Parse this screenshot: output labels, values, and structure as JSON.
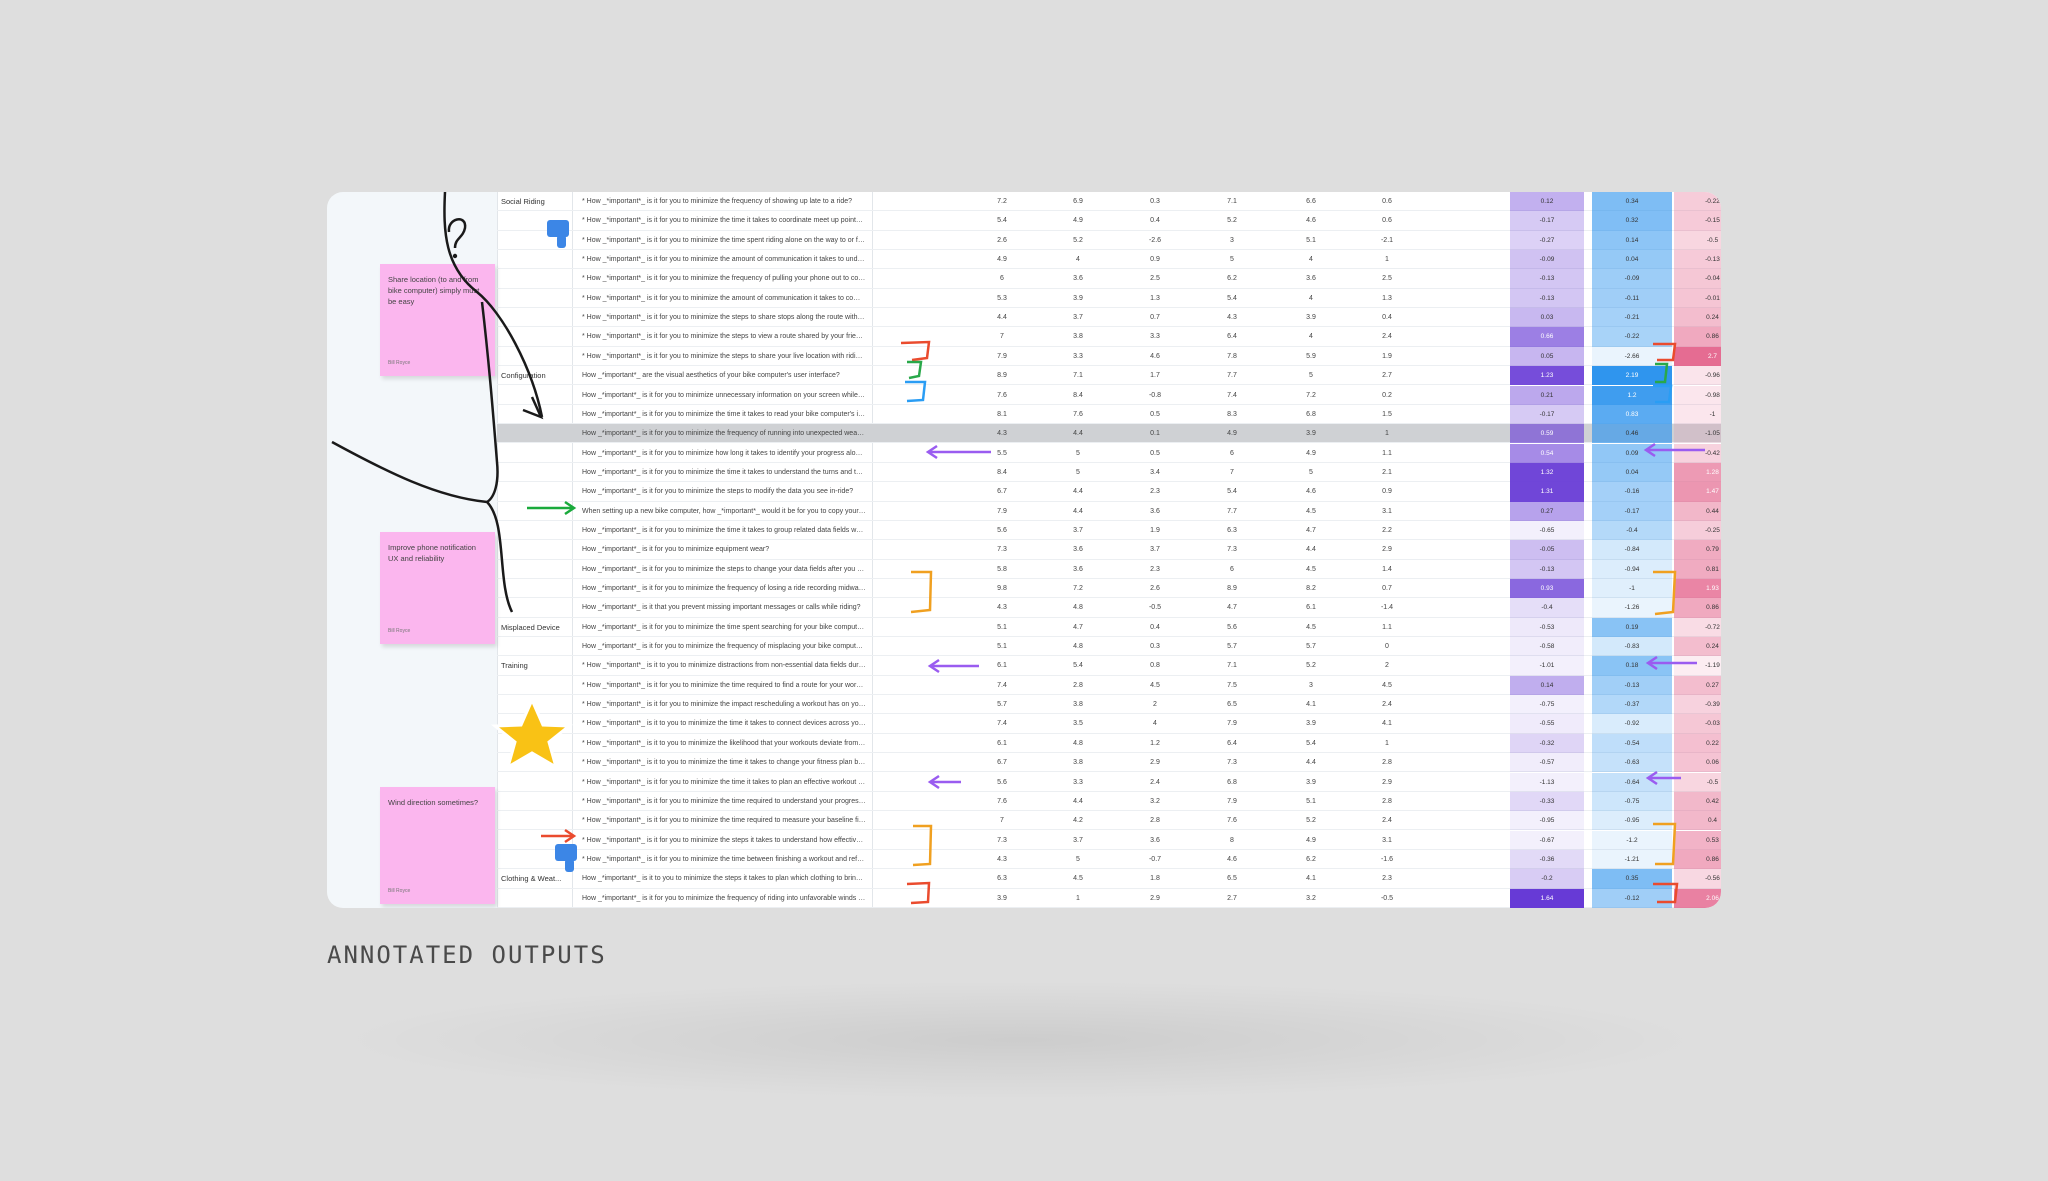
{
  "caption": "ANNOTATED OUTPUTS",
  "sticky_notes": [
    {
      "text": "Share location (to and from bike computer) simply must be easy",
      "author": "Bill Royce"
    },
    {
      "text": "Improve phone notification UX and reliability",
      "author": "Bill Royce"
    },
    {
      "text": "Wind direction sometimes?",
      "author": "Bill Royce"
    }
  ],
  "table": {
    "rows": [
      {
        "cat": "Social Riding",
        "q": "* How _*important*_ is it for you to minimize the frequency of showing up late to a ride?",
        "v": [
          "7.2",
          "6.9",
          "0.3",
          "7.1",
          "6.6",
          "0.6"
        ],
        "h": [
          "0.12",
          "0.34",
          "-0.22"
        ]
      },
      {
        "cat": "",
        "q": "* How _*important*_ is it for you to minimize the time it takes to coordinate meet up points wit...",
        "v": [
          "5.4",
          "4.9",
          "0.4",
          "5.2",
          "4.6",
          "0.6"
        ],
        "h": [
          "-0.17",
          "0.32",
          "-0.15"
        ]
      },
      {
        "cat": "",
        "q": "* How _*important*_ is it for you to minimize the time spent riding alone on the way to or from...",
        "v": [
          "2.6",
          "5.2",
          "-2.6",
          "3",
          "5.1",
          "-2.1"
        ],
        "h": [
          "-0.27",
          "0.14",
          "-0.5"
        ]
      },
      {
        "cat": "",
        "q": "* How _*important*_ is it for you to minimize the amount of communication it takes to underst...",
        "v": [
          "4.9",
          "4",
          "0.9",
          "5",
          "4",
          "1"
        ],
        "h": [
          "-0.09",
          "0.04",
          "-0.13"
        ]
      },
      {
        "cat": "",
        "q": "* How _*important*_ is it for you to minimize the frequency of pulling your phone out to coordin...",
        "v": [
          "6",
          "3.6",
          "2.5",
          "6.2",
          "3.6",
          "2.5"
        ],
        "h": [
          "-0.13",
          "-0.09",
          "-0.04"
        ]
      },
      {
        "cat": "",
        "q": "* How _*important*_ is it for you to minimize the amount of communication it takes to come up...",
        "v": [
          "5.3",
          "3.9",
          "1.3",
          "5.4",
          "4",
          "1.3"
        ],
        "h": [
          "-0.13",
          "-0.11",
          "-0.01"
        ]
      },
      {
        "cat": "",
        "q": "* How _*important*_ is it for you to minimize the steps to share stops along the route with thos...",
        "v": [
          "4.4",
          "3.7",
          "0.7",
          "4.3",
          "3.9",
          "0.4"
        ],
        "h": [
          "0.03",
          "-0.21",
          "0.24"
        ]
      },
      {
        "cat": "",
        "q": "* How _*important*_ is it for you to minimize the steps to view a route shared by your friends?",
        "v": [
          "7",
          "3.8",
          "3.3",
          "6.4",
          "4",
          "2.4"
        ],
        "h": [
          "0.66",
          "-0.22",
          "0.86"
        ]
      },
      {
        "cat": "",
        "q": "* How _*important*_ is it for you to minimize the steps to share your live location with riding pa...",
        "v": [
          "7.9",
          "3.3",
          "4.6",
          "7.8",
          "5.9",
          "1.9"
        ],
        "h": [
          "0.05",
          "-2.66",
          "2.7"
        ]
      },
      {
        "cat": "Configuration",
        "q": "How _*important*_ are the visual aesthetics of your bike computer's user interface?",
        "v": [
          "8.9",
          "7.1",
          "1.7",
          "7.7",
          "5",
          "2.7"
        ],
        "h": [
          "1.23",
          "2.19",
          "-0.96"
        ]
      },
      {
        "cat": "",
        "q": "How _*important*_ is it for you to minimize unnecessary information on your screen while ridin...",
        "v": [
          "7.6",
          "8.4",
          "-0.8",
          "7.4",
          "7.2",
          "0.2"
        ],
        "h": [
          "0.21",
          "1.2",
          "-0.98"
        ]
      },
      {
        "cat": "",
        "q": "How _*important*_ is it for you to minimize the time it takes to read your bike computer's interf...",
        "v": [
          "8.1",
          "7.6",
          "0.5",
          "8.3",
          "6.8",
          "1.5"
        ],
        "h": [
          "-0.17",
          "0.83",
          "-1"
        ]
      },
      {
        "cat": "",
        "q": "How _*important*_ is it for you to minimize the frequency of running into unexpected weather s...",
        "v": [
          "4.3",
          "4.4",
          "0.1",
          "4.9",
          "3.9",
          "1"
        ],
        "h": [
          "0.59",
          "0.46",
          "-1.05"
        ]
      },
      {
        "cat": "",
        "q": "How _*important*_ is it for you to minimize how long it takes to identify your progress along a r...",
        "v": [
          "5.5",
          "5",
          "0.5",
          "6",
          "4.9",
          "1.1"
        ],
        "h": [
          "0.54",
          "0.09",
          "-0.42"
        ]
      },
      {
        "cat": "",
        "q": "How _*important*_ is it for you to minimize the time it takes to understand the turns and topo...",
        "v": [
          "8.4",
          "5",
          "3.4",
          "7",
          "5",
          "2.1"
        ],
        "h": [
          "1.32",
          "0.04",
          "1.28"
        ]
      },
      {
        "cat": "",
        "q": "How _*important*_ is it for you to minimize the steps to modify the data you see in-ride?",
        "v": [
          "6.7",
          "4.4",
          "2.3",
          "5.4",
          "4.6",
          "0.9"
        ],
        "h": [
          "1.31",
          "-0.16",
          "1.47"
        ]
      },
      {
        "cat": "",
        "q": "When setting up a new bike computer, how _*important*_ would it be for you to copy your sett...",
        "v": [
          "7.9",
          "4.4",
          "3.6",
          "7.7",
          "4.5",
          "3.1"
        ],
        "h": [
          "0.27",
          "-0.17",
          "0.44"
        ]
      },
      {
        "cat": "",
        "q": "How _*important*_ is it for you to minimize the time it takes to group related data fields when d...",
        "v": [
          "5.6",
          "3.7",
          "1.9",
          "6.3",
          "4.7",
          "2.2"
        ],
        "h": [
          "-0.65",
          "-0.4",
          "-0.25"
        ]
      },
      {
        "cat": "",
        "q": "How _*important*_ is it for you to minimize equipment wear?",
        "v": [
          "7.3",
          "3.6",
          "3.7",
          "7.3",
          "4.4",
          "2.9"
        ],
        "h": [
          "-0.05",
          "-0.84",
          "0.79"
        ]
      },
      {
        "cat": "",
        "q": "How _*important*_ is it for you to minimize the steps to change your data fields after you have...",
        "v": [
          "5.8",
          "3.6",
          "2.3",
          "6",
          "4.5",
          "1.4"
        ],
        "h": [
          "-0.13",
          "-0.94",
          "0.81"
        ]
      },
      {
        "cat": "",
        "q": "How _*important*_ is it for you to minimize the frequency of losing a ride recording midway thr...",
        "v": [
          "9.8",
          "7.2",
          "2.6",
          "8.9",
          "8.2",
          "0.7"
        ],
        "h": [
          "0.93",
          "-1",
          "1.93"
        ]
      },
      {
        "cat": "",
        "q": "How _*important*_ is it that you prevent missing important messages or calls while riding?",
        "v": [
          "4.3",
          "4.8",
          "-0.5",
          "4.7",
          "6.1",
          "-1.4"
        ],
        "h": [
          "-0.4",
          "-1.26",
          "0.86"
        ]
      },
      {
        "cat": "Misplaced Device",
        "q": "How _*important*_ is it for you to minimize the time spent searching for your bike computer if i...",
        "v": [
          "5.1",
          "4.7",
          "0.4",
          "5.6",
          "4.5",
          "1.1"
        ],
        "h": [
          "-0.53",
          "0.19",
          "-0.72"
        ]
      },
      {
        "cat": "",
        "q": "How _*important*_ is it for you to minimize the frequency of misplacing your bike computer?",
        "v": [
          "5.1",
          "4.8",
          "0.3",
          "5.7",
          "5.7",
          "0"
        ],
        "h": [
          "-0.58",
          "-0.83",
          "0.24"
        ]
      },
      {
        "cat": "Training",
        "q": "* How _*important*_ is it to you to minimize distractions from non-essential data fields during y...",
        "v": [
          "6.1",
          "5.4",
          "0.8",
          "7.1",
          "5.2",
          "2"
        ],
        "h": [
          "-1.01",
          "0.18",
          "-1.19"
        ]
      },
      {
        "cat": "",
        "q": "* How _*important*_ is it for you to minimize the time required to find a route for your workouts?",
        "v": [
          "7.4",
          "2.8",
          "4.5",
          "7.5",
          "3",
          "4.5"
        ],
        "h": [
          "0.14",
          "-0.13",
          "0.27"
        ]
      },
      {
        "cat": "",
        "q": "* How _*important*_ is it for you to minimize the impact rescheduling a workout has on your tra...",
        "v": [
          "5.7",
          "3.8",
          "2",
          "6.5",
          "4.1",
          "2.4"
        ],
        "h": [
          "-0.75",
          "-0.37",
          "-0.39"
        ]
      },
      {
        "cat": "",
        "q": "* How _*important*_ is it to you to minimize the time it takes to connect devices across your bi...",
        "v": [
          "7.4",
          "3.5",
          "4",
          "7.9",
          "3.9",
          "4.1"
        ],
        "h": [
          "-0.55",
          "-0.92",
          "-0.03"
        ]
      },
      {
        "cat": "",
        "q": "* How _*important*_ is it to you to minimize the likelihood that your workouts deviate from your...",
        "v": [
          "6.1",
          "4.8",
          "1.2",
          "6.4",
          "5.4",
          "1"
        ],
        "h": [
          "-0.32",
          "-0.54",
          "0.22"
        ]
      },
      {
        "cat": "",
        "q": "* How _*important*_ is it to you to minimize the time it takes to change your fitness plan based...",
        "v": [
          "6.7",
          "3.8",
          "2.9",
          "7.3",
          "4.4",
          "2.8"
        ],
        "h": [
          "-0.57",
          "-0.63",
          "0.06"
        ]
      },
      {
        "cat": "",
        "q": "* How _*important*_ is it for you to minimize the time it takes to plan an effective workout right...",
        "v": [
          "5.6",
          "3.3",
          "2.4",
          "6.8",
          "3.9",
          "2.9"
        ],
        "h": [
          "-1.13",
          "-0.64",
          "-0.5"
        ]
      },
      {
        "cat": "",
        "q": "* How _*important*_ is it for you to minimize the time required to understand your progress thro...",
        "v": [
          "7.6",
          "4.4",
          "3.2",
          "7.9",
          "5.1",
          "2.8"
        ],
        "h": [
          "-0.33",
          "-0.75",
          "0.42"
        ]
      },
      {
        "cat": "",
        "q": "* How _*important*_ is it for you to minimize the time required to measure your baseline fitness...",
        "v": [
          "7",
          "4.2",
          "2.8",
          "7.6",
          "5.2",
          "2.4"
        ],
        "h": [
          "-0.95",
          "-0.95",
          "0.4"
        ]
      },
      {
        "cat": "",
        "q": "* How _*important*_ is it for you to minimize the steps it takes to understand how effective a w...",
        "v": [
          "7.3",
          "3.7",
          "3.6",
          "8",
          "4.9",
          "3.1"
        ],
        "h": [
          "-0.67",
          "-1.2",
          "0.53"
        ]
      },
      {
        "cat": "",
        "q": "* How _*important*_ is it for you to minimize the time between finishing a workout and refueling?",
        "v": [
          "4.3",
          "5",
          "-0.7",
          "4.6",
          "6.2",
          "-1.6"
        ],
        "h": [
          "-0.36",
          "-1.21",
          "0.86"
        ]
      },
      {
        "cat": "Clothing & Weat...",
        "q": "How _*important*_ is it to you to minimize the steps it takes to plan which clothing to bring on...",
        "v": [
          "6.3",
          "4.5",
          "1.8",
          "6.5",
          "4.1",
          "2.3"
        ],
        "h": [
          "-0.2",
          "0.35",
          "-0.56"
        ]
      },
      {
        "cat": "",
        "q": "How _*important*_ is it for you to minimize the frequency of riding into unfavorable winds durin...",
        "v": [
          "3.9",
          "1",
          "2.9",
          "2.7",
          "3.2",
          "-0.5"
        ],
        "h": [
          "1.64",
          "-0.12",
          "2.06"
        ]
      }
    ]
  },
  "colors": {
    "heat_purple": "#6b3ed6",
    "heat_blue": "#2f95ee",
    "heat_pink": "#e25a85",
    "sticky": "#fbb6ee",
    "arrow_purple": "#9a5cf0",
    "bracket_orange": "#f0a020",
    "bracket_red": "#ea4b2e",
    "bracket_blue": "#2a9df4",
    "bracket_green": "#29a84a",
    "arrow_green": "#1aaa3c"
  },
  "icons": [
    "thumbs-down-icon",
    "star-icon",
    "question-mark-doodle"
  ]
}
